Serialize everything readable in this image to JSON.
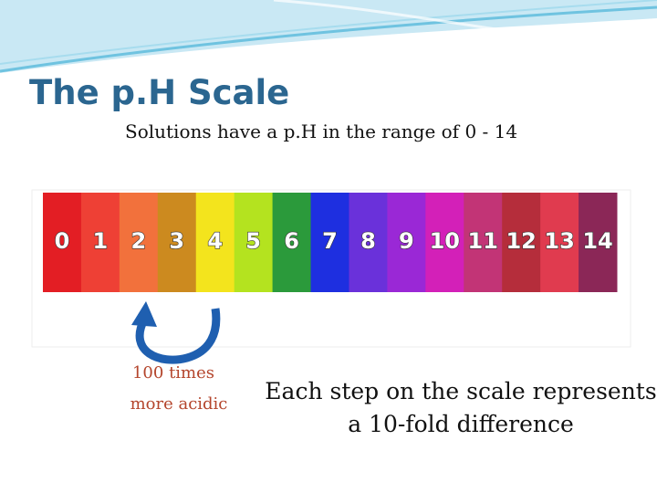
{
  "title": "The p.H Scale",
  "subtitle": "Solutions have a p.H in the range of 0 - 14",
  "scale": {
    "cells": [
      {
        "label": "0",
        "color": "#e31e24"
      },
      {
        "label": "1",
        "color": "#ee4035"
      },
      {
        "label": "2",
        "color": "#f2713c"
      },
      {
        "label": "3",
        "color": "#cc8a1f"
      },
      {
        "label": "4",
        "color": "#f3e41d"
      },
      {
        "label": "5",
        "color": "#b4e31f"
      },
      {
        "label": "6",
        "color": "#2b9a3b"
      },
      {
        "label": "7",
        "color": "#1e2fe0"
      },
      {
        "label": "8",
        "color": "#6a31da"
      },
      {
        "label": "9",
        "color": "#9a28d6"
      },
      {
        "label": "10",
        "color": "#d320b8"
      },
      {
        "label": "11",
        "color": "#c23476"
      },
      {
        "label": "12",
        "color": "#b52d3b"
      },
      {
        "label": "13",
        "color": "#e03b4f"
      },
      {
        "label": "14",
        "color": "#8b2757"
      }
    ]
  },
  "arrow_note": [
    "100 times",
    "more acidic"
  ],
  "note": [
    "Each step on the scale represents",
    "a 10-fold difference"
  ]
}
